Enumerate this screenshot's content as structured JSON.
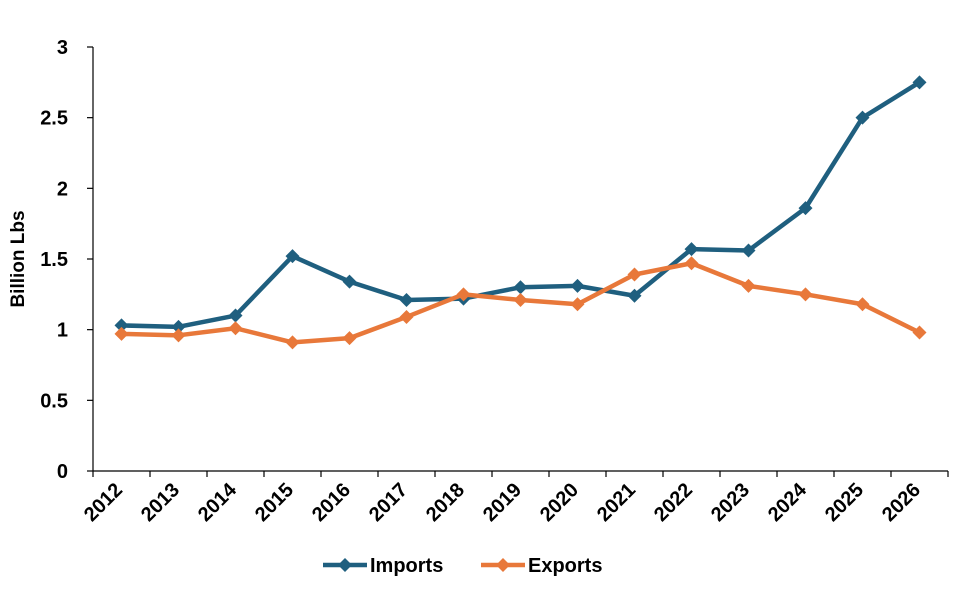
{
  "chart_data": {
    "type": "line",
    "title": "",
    "xlabel": "",
    "ylabel": "Billion Lbs",
    "categories": [
      "2012",
      "2013",
      "2014",
      "2015",
      "2016",
      "2017",
      "2018",
      "2019",
      "2020",
      "2021",
      "2022",
      "2023",
      "2024",
      "2025",
      "2026"
    ],
    "ylim": [
      0,
      3
    ],
    "yticks": [
      "0",
      "0.5",
      "1",
      "1.5",
      "2",
      "2.5",
      "3"
    ],
    "grid": false,
    "legend_position": "bottom",
    "series": [
      {
        "name": "Imports",
        "color": "#1F5F7F",
        "marker": "diamond",
        "values": [
          1.03,
          1.02,
          1.1,
          1.52,
          1.34,
          1.21,
          1.22,
          1.3,
          1.31,
          1.24,
          1.57,
          1.56,
          1.86,
          2.5,
          2.75
        ]
      },
      {
        "name": "Exports",
        "color": "#E8783A",
        "marker": "diamond",
        "values": [
          0.97,
          0.96,
          1.01,
          0.91,
          0.94,
          1.09,
          1.25,
          1.21,
          1.18,
          1.39,
          1.47,
          1.31,
          1.25,
          1.18,
          0.98
        ]
      }
    ]
  }
}
